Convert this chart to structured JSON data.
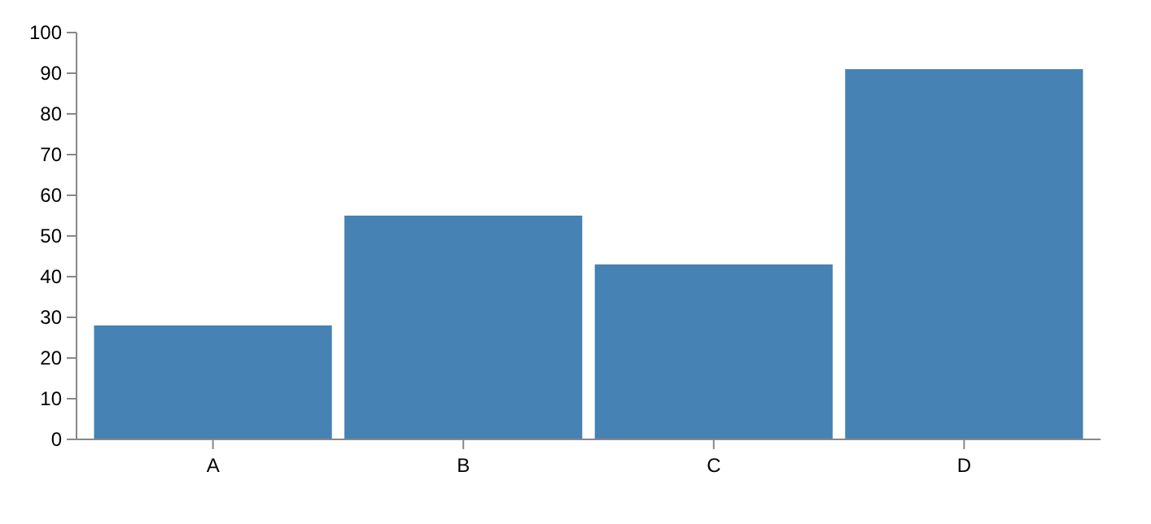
{
  "chart_data": {
    "type": "bar",
    "categories": [
      "A",
      "B",
      "C",
      "D"
    ],
    "values": [
      28,
      55,
      43,
      91
    ],
    "color": "#4682b4",
    "ylim": [
      0,
      100
    ],
    "yticks": [
      0,
      10,
      20,
      30,
      40,
      50,
      60,
      70,
      80,
      90,
      100
    ],
    "grid": false
  }
}
